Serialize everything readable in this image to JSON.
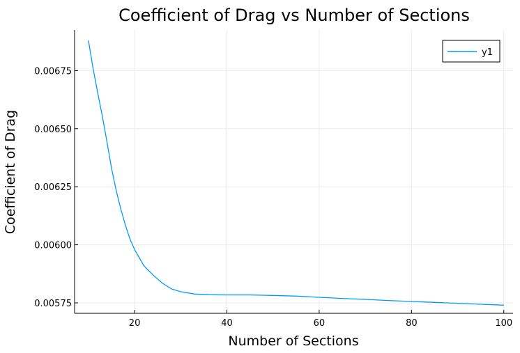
{
  "chart_data": {
    "type": "line",
    "title": "Coefficient of Drag vs Number of Sections",
    "xlabel": "Number of Sections",
    "ylabel": "Coefficient of Drag",
    "xlim": [
      7,
      102
    ],
    "ylim": [
      0.005705,
      0.006925
    ],
    "xticks": [
      20,
      40,
      60,
      80,
      100
    ],
    "xtick_labels": [
      "20",
      "40",
      "60",
      "80",
      "100"
    ],
    "yticks": [
      0.00575,
      0.006,
      0.00625,
      0.0065,
      0.00675
    ],
    "ytick_labels": [
      "0.00575",
      "0.00600",
      "0.00625",
      "0.00650",
      "0.00675"
    ],
    "grid": true,
    "legend_position": "top-right",
    "series": [
      {
        "name": "y1",
        "color": "#009af9",
        "x": [
          10,
          11,
          12,
          13,
          14,
          15,
          16,
          17,
          18,
          19,
          20,
          22,
          24,
          26,
          28,
          30,
          33,
          36,
          40,
          45,
          50,
          55,
          60,
          65,
          70,
          75,
          80,
          85,
          90,
          95,
          100
        ],
        "y": [
          0.00688,
          0.00676,
          0.006655,
          0.006555,
          0.006445,
          0.00633,
          0.006235,
          0.006155,
          0.006085,
          0.006025,
          0.00598,
          0.00591,
          0.00587,
          0.005835,
          0.00581,
          0.005798,
          0.005788,
          0.005785,
          0.005784,
          0.005784,
          0.005782,
          0.005779,
          0.005774,
          0.005769,
          0.005765,
          0.00576,
          0.005756,
          0.005752,
          0.005748,
          0.005744,
          0.00574
        ]
      }
    ]
  }
}
